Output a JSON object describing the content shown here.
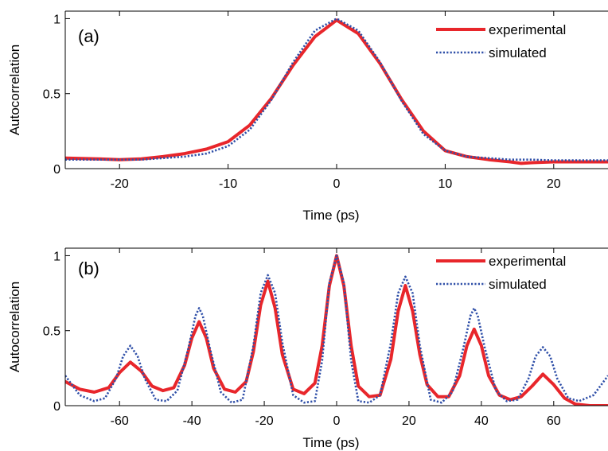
{
  "chart_data": [
    {
      "type": "line",
      "panel_label": "(a)",
      "xlabel": "Time (ps)",
      "ylabel": "Autocorrelation",
      "xlim": [
        -25,
        25
      ],
      "ylim": [
        0,
        1.05
      ],
      "xticks": [
        -20,
        -10,
        0,
        10,
        20
      ],
      "xtick_labels": [
        "-20",
        "-10",
        "0",
        "10",
        "20"
      ],
      "yticks": [
        0,
        0.5,
        1
      ],
      "ytick_labels": [
        "0",
        "0.5",
        "1"
      ],
      "legend_position": "top-right",
      "grid": false,
      "series": [
        {
          "name": "experimental",
          "style": "solid",
          "color": "#e8262b",
          "x": [
            -25,
            -22,
            -20,
            -18,
            -16,
            -14,
            -12,
            -10,
            -8,
            -6,
            -4,
            -2,
            0,
            2,
            4,
            6,
            8,
            10,
            12,
            14,
            16,
            17,
            18,
            20,
            22,
            25
          ],
          "y": [
            0.07,
            0.065,
            0.06,
            0.065,
            0.08,
            0.1,
            0.13,
            0.18,
            0.29,
            0.47,
            0.69,
            0.88,
            0.99,
            0.9,
            0.7,
            0.46,
            0.25,
            0.12,
            0.08,
            0.06,
            0.045,
            0.035,
            0.04,
            0.045,
            0.045,
            0.045
          ]
        },
        {
          "name": "simulated",
          "style": "dotted",
          "color": "#2f4fa8",
          "x": [
            -25,
            -22,
            -20,
            -18,
            -16,
            -14,
            -12,
            -10,
            -8,
            -6,
            -4,
            -2,
            0,
            2,
            4,
            6,
            8,
            10,
            12,
            14,
            16,
            18,
            20,
            22,
            25
          ],
          "y": [
            0.06,
            0.06,
            0.06,
            0.06,
            0.07,
            0.08,
            0.1,
            0.15,
            0.26,
            0.46,
            0.71,
            0.92,
            1.0,
            0.92,
            0.71,
            0.45,
            0.23,
            0.12,
            0.08,
            0.07,
            0.06,
            0.06,
            0.055,
            0.055,
            0.055
          ]
        }
      ]
    },
    {
      "type": "line",
      "panel_label": "(b)",
      "xlabel": "Time (ps)",
      "ylabel": "Autocorrelation",
      "xlim": [
        -75,
        75
      ],
      "ylim": [
        0,
        1.05
      ],
      "xticks": [
        -60,
        -40,
        -20,
        0,
        20,
        40,
        60
      ],
      "xtick_labels": [
        "-60",
        "-40",
        "-20",
        "0",
        "20",
        "40",
        "60"
      ],
      "yticks": [
        0,
        0.5,
        1
      ],
      "ytick_labels": [
        "0",
        "0.5",
        "1"
      ],
      "legend_position": "top-right",
      "grid": false,
      "peaks": {
        "centers": [
          -57,
          -38,
          -19,
          0,
          19,
          38,
          57
        ],
        "experimental_heights": [
          0.29,
          0.56,
          0.83,
          1.0,
          0.8,
          0.51,
          0.21
        ],
        "simulated_heights": [
          0.4,
          0.65,
          0.87,
          1.0,
          0.86,
          0.65,
          0.39
        ]
      },
      "series": [
        {
          "name": "experimental",
          "style": "solid",
          "color": "#e8262b",
          "x": [
            -75,
            -71,
            -67,
            -63,
            -60,
            -57,
            -54,
            -51,
            -48,
            -45,
            -42,
            -40,
            -38,
            -36,
            -34,
            -31,
            -28,
            -25,
            -23,
            -21,
            -19,
            -17,
            -15,
            -12,
            -9,
            -6,
            -4,
            -2,
            0,
            2,
            4,
            6,
            9,
            12,
            15,
            17,
            19,
            21,
            23,
            25,
            28,
            31,
            34,
            36,
            38,
            40,
            42,
            45,
            48,
            51,
            54,
            57,
            60,
            63,
            66,
            70,
            75
          ],
          "y": [
            0.16,
            0.11,
            0.09,
            0.12,
            0.22,
            0.29,
            0.23,
            0.13,
            0.1,
            0.12,
            0.27,
            0.45,
            0.56,
            0.45,
            0.25,
            0.11,
            0.09,
            0.16,
            0.36,
            0.67,
            0.83,
            0.65,
            0.34,
            0.11,
            0.08,
            0.15,
            0.4,
            0.8,
            1.0,
            0.8,
            0.4,
            0.13,
            0.06,
            0.07,
            0.31,
            0.63,
            0.8,
            0.63,
            0.34,
            0.14,
            0.06,
            0.06,
            0.2,
            0.4,
            0.51,
            0.4,
            0.2,
            0.07,
            0.04,
            0.06,
            0.13,
            0.21,
            0.14,
            0.05,
            0.01,
            0.0,
            0.0
          ]
        },
        {
          "name": "simulated",
          "style": "dotted",
          "color": "#2f4fa8",
          "x": [
            -75,
            -71,
            -67,
            -64,
            -61,
            -59,
            -57,
            -55,
            -53,
            -50,
            -47,
            -44,
            -41,
            -39,
            -38,
            -37,
            -35,
            -32,
            -29,
            -26,
            -23,
            -21,
            -19,
            -17,
            -15,
            -12,
            -9,
            -6,
            -4,
            -2,
            0,
            2,
            4,
            6,
            9,
            12,
            15,
            17,
            19,
            21,
            23,
            26,
            29,
            32,
            35,
            37,
            38,
            39,
            41,
            44,
            47,
            50,
            53,
            55,
            57,
            59,
            61,
            64,
            67,
            71,
            75
          ],
          "y": [
            0.2,
            0.07,
            0.03,
            0.05,
            0.18,
            0.33,
            0.4,
            0.33,
            0.18,
            0.04,
            0.03,
            0.1,
            0.38,
            0.6,
            0.65,
            0.6,
            0.38,
            0.09,
            0.02,
            0.04,
            0.4,
            0.75,
            0.87,
            0.75,
            0.42,
            0.07,
            0.02,
            0.03,
            0.3,
            0.82,
            1.0,
            0.82,
            0.3,
            0.03,
            0.02,
            0.07,
            0.42,
            0.75,
            0.86,
            0.75,
            0.4,
            0.04,
            0.02,
            0.09,
            0.38,
            0.6,
            0.65,
            0.6,
            0.38,
            0.1,
            0.03,
            0.04,
            0.18,
            0.33,
            0.39,
            0.33,
            0.18,
            0.05,
            0.03,
            0.07,
            0.2
          ]
        }
      ]
    }
  ]
}
